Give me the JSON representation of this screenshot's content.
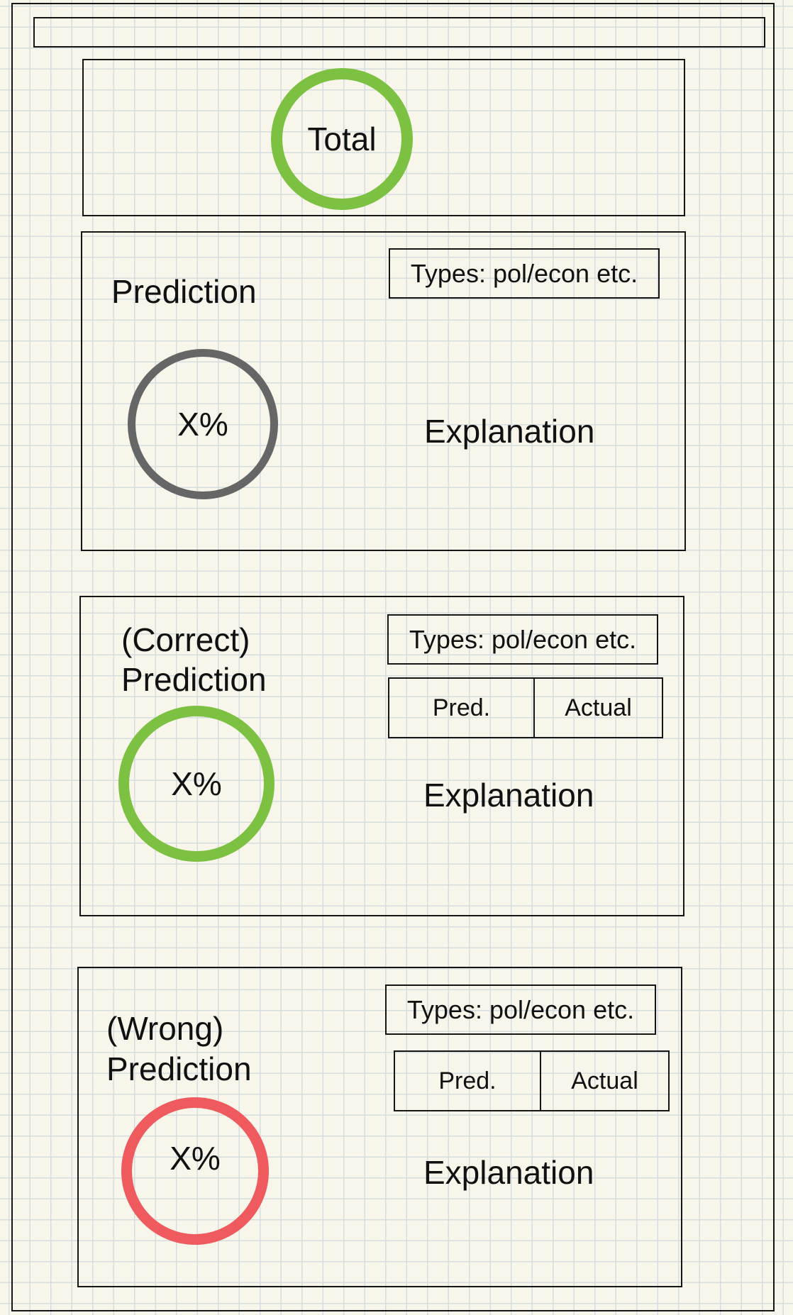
{
  "total": {
    "label": "Total"
  },
  "sections": {
    "prediction": {
      "title_line1": "Prediction",
      "value": "X%",
      "types": "Types: pol/econ etc.",
      "explanation": "Explanation"
    },
    "correct": {
      "title_line1": "(Correct)",
      "title_line2": "Prediction",
      "value": "X%",
      "types": "Types: pol/econ etc.",
      "pred": "Pred.",
      "actual": "Actual",
      "explanation": "Explanation"
    },
    "wrong": {
      "title_line1": "(Wrong)",
      "title_line2": "Prediction",
      "value": "X%",
      "types": "Types: pol/econ etc.",
      "pred": "Pred.",
      "actual": "Actual",
      "explanation": "Explanation"
    }
  },
  "colors": {
    "total_ring": "#7cc142",
    "prediction_ring": "#666666",
    "correct_ring": "#7cc142",
    "wrong_ring": "#ee5a5e"
  }
}
